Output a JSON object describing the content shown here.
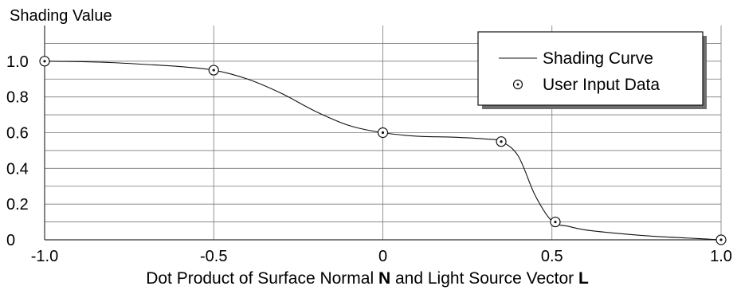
{
  "chart_data": {
    "type": "line",
    "title": "",
    "ylabel": "Shading Value",
    "xlabel_parts": [
      {
        "text": "Dot Product of Surface Normal ",
        "bold": false
      },
      {
        "text": "N",
        "bold": true
      },
      {
        "text": " and Light Source Vector ",
        "bold": false
      },
      {
        "text": "L",
        "bold": true
      }
    ],
    "xlim": [
      -1.0,
      1.0
    ],
    "ylim": [
      0,
      1.2
    ],
    "x_ticks": [
      {
        "value": -1.0,
        "label": "-1.0"
      },
      {
        "value": -0.5,
        "label": "-0.5"
      },
      {
        "value": 0,
        "label": "0"
      },
      {
        "value": 0.5,
        "label": "0.5"
      },
      {
        "value": 1.0,
        "label": "1.0"
      }
    ],
    "y_ticks": [
      {
        "value": 0,
        "label": "0"
      },
      {
        "value": 0.2,
        "label": "0.2"
      },
      {
        "value": 0.4,
        "label": "0.4"
      },
      {
        "value": 0.6,
        "label": "0.6"
      },
      {
        "value": 0.8,
        "label": "0.8"
      },
      {
        "value": 1.0,
        "label": "1.0"
      }
    ],
    "grid": true,
    "legend_position": "top-right",
    "series": [
      {
        "name": "Shading Curve",
        "kind": "line",
        "x": [
          -1.0,
          -0.9,
          -0.8,
          -0.7,
          -0.6,
          -0.5,
          -0.4,
          -0.3,
          -0.2,
          -0.1,
          0.0,
          0.1,
          0.2,
          0.3,
          0.35,
          0.4,
          0.45,
          0.5,
          0.55,
          0.6,
          0.7,
          0.8,
          0.9,
          1.0
        ],
        "y": [
          1.0,
          0.998,
          0.992,
          0.982,
          0.97,
          0.95,
          0.9,
          0.82,
          0.72,
          0.64,
          0.6,
          0.58,
          0.575,
          0.565,
          0.55,
          0.47,
          0.25,
          0.105,
          0.075,
          0.055,
          0.035,
          0.02,
          0.01,
          0.0
        ]
      },
      {
        "name": "User Input Data",
        "kind": "scatter",
        "x": [
          -1.0,
          -0.5,
          0.0,
          0.35,
          0.51,
          1.0
        ],
        "y": [
          1.0,
          0.95,
          0.6,
          0.55,
          0.1,
          0.0
        ]
      }
    ]
  }
}
